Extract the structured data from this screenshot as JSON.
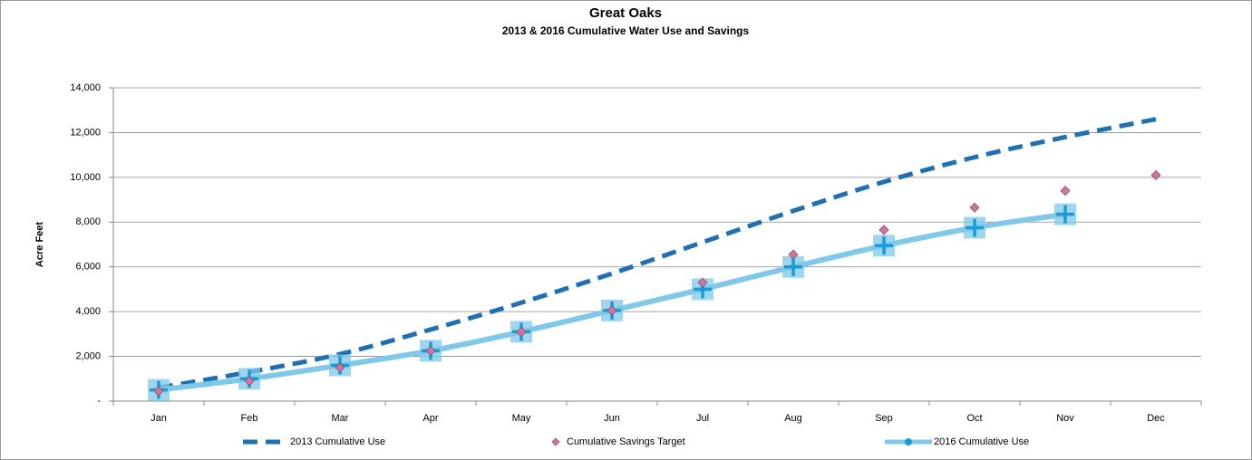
{
  "chart_data": {
    "type": "line",
    "title": "Great Oaks",
    "subtitle": "2013 & 2016 Cumulative Water Use and Savings",
    "y_label": "Acre Feet",
    "categories": [
      "Jan",
      "Feb",
      "Mar",
      "Apr",
      "May",
      "Jun",
      "Jul",
      "Aug",
      "Sep",
      "Oct",
      "Nov",
      "Dec"
    ],
    "series": [
      {
        "name": "2013 Cumulative Use",
        "color": "#1f6fb5",
        "style": "dashed",
        "values": [
          600,
          1300,
          2100,
          3200,
          4400,
          5700,
          7100,
          8500,
          9800,
          10900,
          11800,
          12600
        ]
      },
      {
        "name": "Cumulative Savings Target",
        "color": "#c9799f",
        "style": "markers",
        "values": [
          450,
          900,
          1500,
          2250,
          3100,
          4050,
          5300,
          6550,
          7650,
          8650,
          9400,
          10100
        ]
      },
      {
        "name": "2016 Cumulative Use",
        "color": "#7fc8ea",
        "style": "solid-plus",
        "values": [
          500,
          1000,
          1600,
          2250,
          3100,
          4050,
          5000,
          6000,
          6950,
          7750,
          8350,
          null
        ]
      }
    ],
    "ylim": [
      0,
      14000
    ],
    "yticks": [
      {
        "value": 0,
        "label": "-"
      },
      {
        "value": 2000,
        "label": "2,000"
      },
      {
        "value": 4000,
        "label": "4,000"
      },
      {
        "value": 6000,
        "label": "6,000"
      },
      {
        "value": 8000,
        "label": "8,000"
      },
      {
        "value": 10000,
        "label": "10,000"
      },
      {
        "value": 12000,
        "label": "12,000"
      },
      {
        "value": 14000,
        "label": "14,000"
      }
    ],
    "grid": true,
    "legend": "bottom"
  }
}
